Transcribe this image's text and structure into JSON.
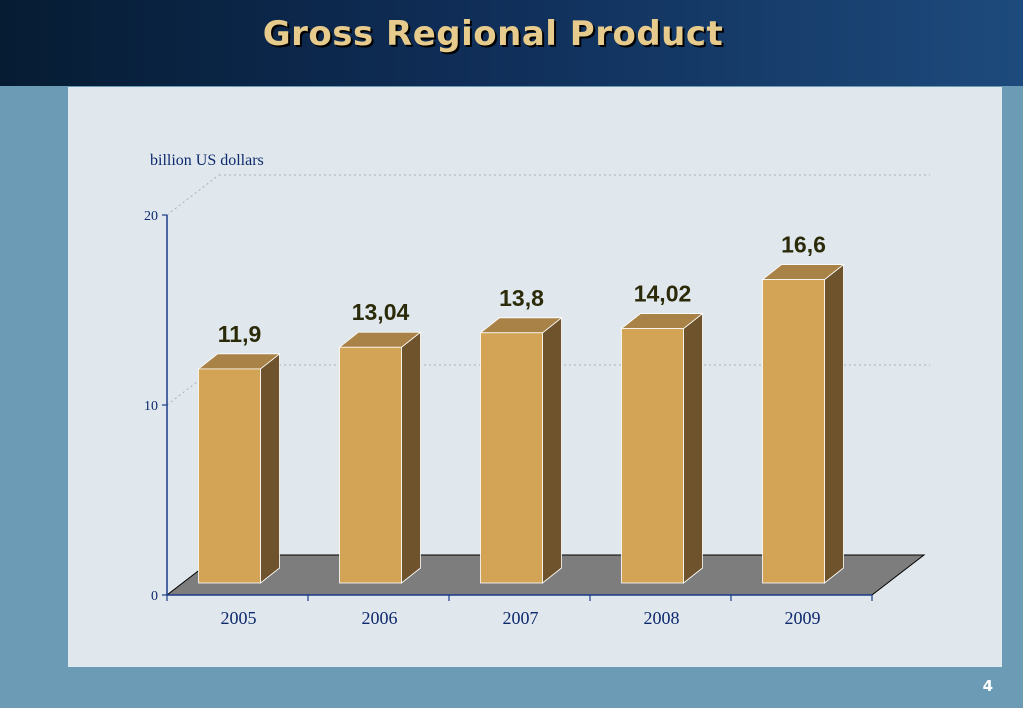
{
  "slide": {
    "title": "Gross Regional Product",
    "page_number": "4"
  },
  "colors": {
    "bar_front": "#d3a356",
    "bar_side": "#6e532c",
    "bar_top": "#a98247",
    "floor": "#7d7d7d",
    "axis": "#1c3a8a",
    "text": "#0e2a6e",
    "value_label": "#2b2b0a"
  },
  "chart_data": {
    "type": "bar",
    "unit_label": "billion US dollars",
    "categories": [
      "2005",
      "2006",
      "2007",
      "2008",
      "2009"
    ],
    "values": [
      11.9,
      13.04,
      13.8,
      14.02,
      16.6
    ],
    "value_labels": [
      "11,9",
      "13,04",
      "13,8",
      "14,02",
      "16,6"
    ],
    "y_ticks": [
      "0",
      "10",
      "20"
    ],
    "ylim": [
      0,
      20
    ],
    "grid": true,
    "style": "3d-column"
  }
}
